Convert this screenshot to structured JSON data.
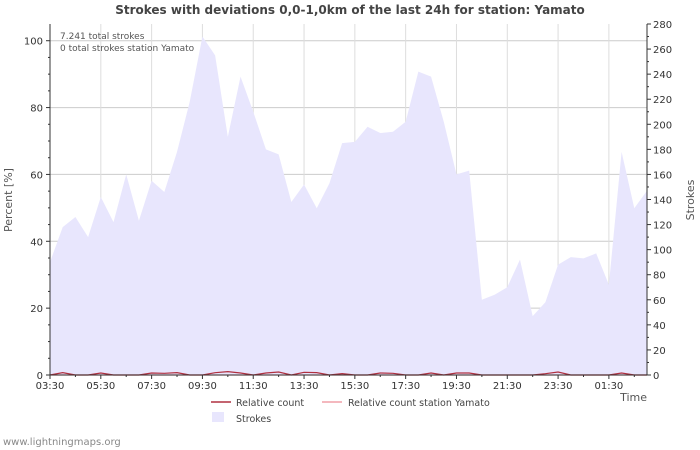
{
  "chart_data": {
    "type": "area",
    "title": "Strokes with deviations 0,0-1,0km of the last 24h for station: Yamato",
    "xlabel": "Time",
    "ylabel_left": "Percent   [%]",
    "ylabel_right": "Strokes",
    "x_ticks": [
      "03:30",
      "05:30",
      "07:30",
      "09:30",
      "11:30",
      "13:30",
      "15:30",
      "17:30",
      "19:30",
      "21:30",
      "23:30",
      "01:30"
    ],
    "y_left_ticks": [
      0,
      20,
      40,
      60,
      80,
      100
    ],
    "y_right_ticks": [
      0,
      20,
      40,
      60,
      80,
      100,
      120,
      140,
      160,
      180,
      200,
      220,
      240,
      260,
      280
    ],
    "ylim_left": [
      0,
      105
    ],
    "ylim_right": [
      0,
      280
    ],
    "grid": true,
    "x_range_hours": [
      0,
      23.5
    ],
    "annotations": [
      "7.241 total strokes",
      "0 total strokes station Yamato"
    ],
    "series": [
      {
        "name": "Strokes",
        "axis": "right",
        "color": "#e8e6fd",
        "x": [
          0,
          0.5,
          1,
          1.5,
          2,
          2.5,
          3,
          3.5,
          4,
          4.5,
          5,
          5.5,
          6,
          6.5,
          7,
          7.5,
          8,
          8.5,
          9,
          9.5,
          10,
          10.5,
          11,
          11.5,
          12,
          12.5,
          13,
          13.5,
          14,
          14.5,
          15,
          15.5,
          16,
          16.5,
          17,
          17.5,
          18,
          18.5,
          19,
          19.5,
          20,
          20.5,
          21,
          21.5,
          22,
          22.5,
          23,
          23.5
        ],
        "values": [
          90,
          118,
          126,
          110,
          142,
          122,
          160,
          123,
          155,
          146,
          178,
          218,
          270,
          255,
          190,
          238,
          210,
          180,
          176,
          138,
          152,
          133,
          153,
          185,
          186,
          198,
          193,
          194,
          202,
          242,
          238,
          202,
          160,
          163,
          60,
          64,
          70,
          92,
          47,
          58,
          88,
          94,
          93,
          97,
          72,
          178,
          133,
          147
        ]
      },
      {
        "name": "Relative count",
        "axis": "left",
        "color": "#b03040",
        "x": [
          0,
          0.5,
          1,
          1.5,
          2,
          2.5,
          3,
          3.5,
          4,
          4.5,
          5,
          5.5,
          6,
          6.5,
          7,
          7.5,
          8,
          8.5,
          9,
          9.5,
          10,
          10.5,
          11,
          11.5,
          12,
          12.5,
          13,
          13.5,
          14,
          14.5,
          15,
          15.5,
          16,
          16.5,
          17,
          17.5,
          18,
          18.5,
          19,
          19.5,
          20,
          20.5,
          21,
          21.5,
          22,
          22.5,
          23,
          23.5
        ],
        "values": [
          0,
          0.7,
          0,
          0,
          0.6,
          0,
          0,
          0,
          0.6,
          0.5,
          0.7,
          0,
          0,
          0.7,
          1,
          0.6,
          0,
          0.6,
          0.9,
          0,
          0.8,
          0.7,
          0,
          0.4,
          0,
          0,
          0.6,
          0.5,
          0,
          0,
          0.6,
          0,
          0.6,
          0.6,
          0,
          0,
          0,
          0,
          0,
          0.4,
          0.9,
          0,
          0,
          0,
          0,
          0.6,
          0,
          0
        ]
      },
      {
        "name": "Relative count station Yamato",
        "axis": "left",
        "color": "#f0a0a8",
        "x": [
          0,
          23.5
        ],
        "values": [
          0,
          0
        ]
      }
    ],
    "legend": [
      "Relative count",
      "Relative count station Yamato",
      "Strokes"
    ]
  },
  "footer": "www.lightningmaps.org"
}
